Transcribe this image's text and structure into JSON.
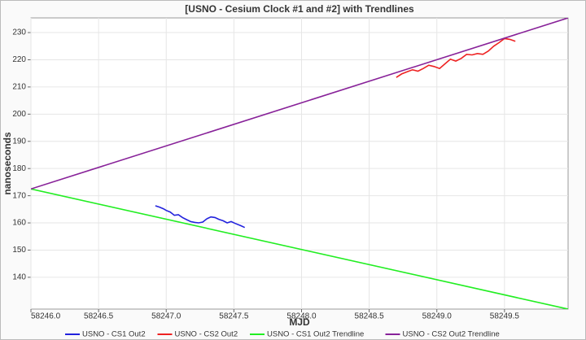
{
  "chart_data": {
    "type": "line",
    "title": "[USNO - Cesium Clock #1 and #2] with Trendlines",
    "x_label": "MJD",
    "y_label": "nanoseconds",
    "xlim": [
      58246.0,
      58249.97
    ],
    "ylim": [
      128.3,
      235.4
    ],
    "xticks": [
      {
        "value": 58246.0,
        "label": "58246.0"
      },
      {
        "value": 58246.5,
        "label": "58246.5"
      },
      {
        "value": 58247.0,
        "label": "58247.0"
      },
      {
        "value": 58247.5,
        "label": "58247.5"
      },
      {
        "value": 58248.0,
        "label": "58248.0"
      },
      {
        "value": 58248.5,
        "label": "58248.5"
      },
      {
        "value": 58249.0,
        "label": "58249.0"
      },
      {
        "value": 58249.5,
        "label": "58249.5"
      }
    ],
    "yticks": [
      140,
      150,
      160,
      170,
      180,
      190,
      200,
      210,
      220,
      230
    ],
    "grid": true,
    "legend": "bottom",
    "series": [
      {
        "name": "USNO - CS1 Out2",
        "color": "#2222dd",
        "x": [
          58246.92,
          58246.95,
          58246.98,
          58247.0,
          58247.03,
          58247.06,
          58247.09,
          58247.12,
          58247.15,
          58247.18,
          58247.21,
          58247.24,
          58247.27,
          58247.3,
          58247.33,
          58247.36,
          58247.39,
          58247.42,
          58247.45,
          58247.48,
          58247.51,
          58247.55,
          58247.58
        ],
        "values": [
          166.3,
          165.8,
          165.2,
          164.6,
          164.0,
          162.8,
          163.0,
          162.0,
          161.2,
          160.5,
          160.2,
          160.0,
          160.3,
          161.5,
          162.2,
          162.0,
          161.3,
          160.8,
          160.0,
          160.5,
          159.8,
          159.0,
          158.3
        ]
      },
      {
        "name": "USNO - CS2 Out2",
        "color": "#ee2222",
        "x": [
          58248.7,
          58248.74,
          58248.78,
          58248.82,
          58248.86,
          58248.9,
          58248.94,
          58248.98,
          58249.02,
          58249.06,
          58249.1,
          58249.14,
          58249.18,
          58249.22,
          58249.26,
          58249.3,
          58249.34,
          58249.38,
          58249.42,
          58249.46,
          58249.5,
          58249.54,
          58249.58
        ],
        "values": [
          213.5,
          214.8,
          215.6,
          216.3,
          215.8,
          216.8,
          218.0,
          217.5,
          216.8,
          218.5,
          220.2,
          219.5,
          220.5,
          222.0,
          221.8,
          222.3,
          222.0,
          223.2,
          225.0,
          226.3,
          227.8,
          227.5,
          226.8
        ]
      },
      {
        "name": "USNO - CS1 Out2 Trendline",
        "color": "#22ee22",
        "x": [
          58246.0,
          58249.97
        ],
        "values": [
          172.5,
          128.3
        ]
      },
      {
        "name": "USNO - CS2 Out2 Trendline",
        "color": "#882299",
        "x": [
          58246.0,
          58249.97
        ],
        "values": [
          172.5,
          235.4
        ]
      }
    ]
  }
}
